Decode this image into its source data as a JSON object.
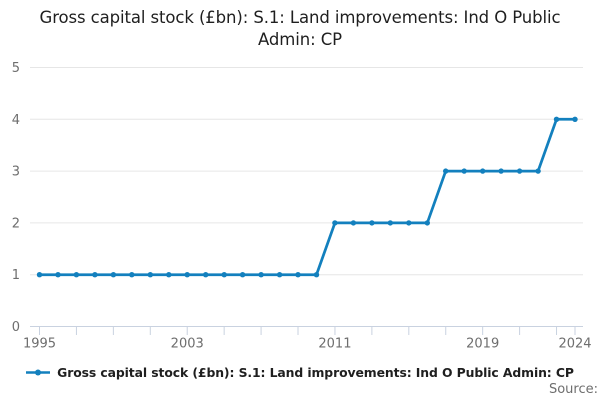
{
  "title": "Gross capital stock (£bn): S.1: Land improvements: Ind O Public Admin: CP",
  "legend": {
    "label": "Gross capital stock (£bn): S.1: Land improvements: Ind O Public Admin: CP",
    "marker": "line-dot-marker"
  },
  "source_label": "Source:",
  "colors": {
    "line": "#1380be",
    "grid": "#e6e6e6",
    "axis": "#c9d2e0",
    "tick_text": "#6e6e6e",
    "title_text": "#1f1f1f"
  },
  "chart_data": {
    "type": "line",
    "title": "Gross capital stock (£bn): S.1: Land improvements: Ind O Public Admin: CP",
    "xlabel": "",
    "ylabel": "",
    "x": [
      1995,
      1996,
      1997,
      1998,
      1999,
      2000,
      2001,
      2002,
      2003,
      2004,
      2005,
      2006,
      2007,
      2008,
      2009,
      2010,
      2011,
      2012,
      2013,
      2014,
      2015,
      2016,
      2017,
      2018,
      2019,
      2020,
      2021,
      2022,
      2023,
      2024
    ],
    "series": [
      {
        "name": "Gross capital stock (£bn): S.1: Land improvements: Ind O Public Admin: CP",
        "values": [
          1,
          1,
          1,
          1,
          1,
          1,
          1,
          1,
          1,
          1,
          1,
          1,
          1,
          1,
          1,
          1,
          2,
          2,
          2,
          2,
          2,
          2,
          3,
          3,
          3,
          3,
          3,
          3,
          4,
          4
        ]
      }
    ],
    "xlim": [
      1995,
      2024
    ],
    "ylim": [
      0,
      5
    ],
    "y_ticks": [
      0,
      1,
      2,
      3,
      4,
      5
    ],
    "x_tick_labels": [
      1995,
      2003,
      2011,
      2019,
      2024
    ],
    "x_minor_ticks_every": 2,
    "grid": "horizontal",
    "markers": true,
    "legend_position": "bottom"
  }
}
